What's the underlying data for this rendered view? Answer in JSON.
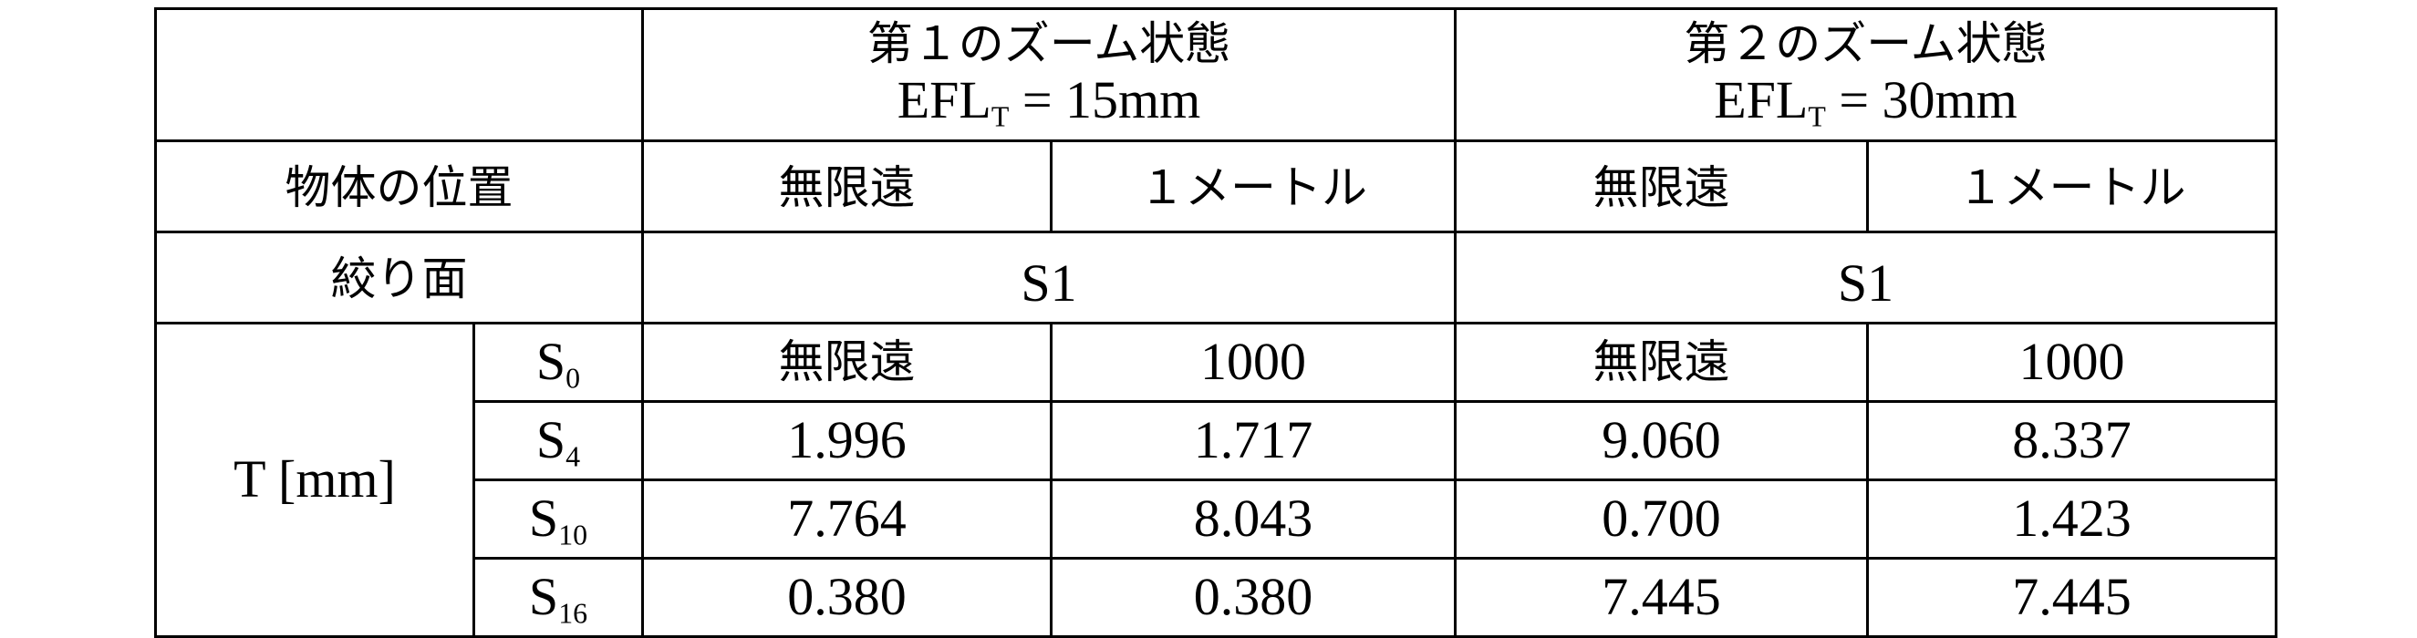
{
  "header": {
    "zoom1": {
      "title": "第１のズーム状態",
      "efl_label": "EFL",
      "efl_sub": "T",
      "efl_value": " = 15mm"
    },
    "zoom2": {
      "title": "第２のズーム状態",
      "efl_label": "EFL",
      "efl_sub": "T",
      "efl_value": " = 30mm"
    }
  },
  "object_position": {
    "label": "物体の位置",
    "values": [
      "無限遠",
      "１メートル",
      "無限遠",
      "１メートル"
    ]
  },
  "stop_surface": {
    "label": "絞り面",
    "values": [
      "S1",
      "S1"
    ]
  },
  "thickness": {
    "label": "T [mm]",
    "rows": [
      {
        "s": "S",
        "sub": "0",
        "values": [
          "無限遠",
          "1000",
          "無限遠",
          "1000"
        ]
      },
      {
        "s": "S",
        "sub": "4",
        "values": [
          "1.996",
          "1.717",
          "9.060",
          "8.337"
        ]
      },
      {
        "s": "S",
        "sub": "10",
        "values": [
          "7.764",
          "8.043",
          "0.700",
          "1.423"
        ]
      },
      {
        "s": "S",
        "sub": "16",
        "values": [
          "0.380",
          "0.380",
          "7.445",
          "7.445"
        ]
      }
    ]
  }
}
